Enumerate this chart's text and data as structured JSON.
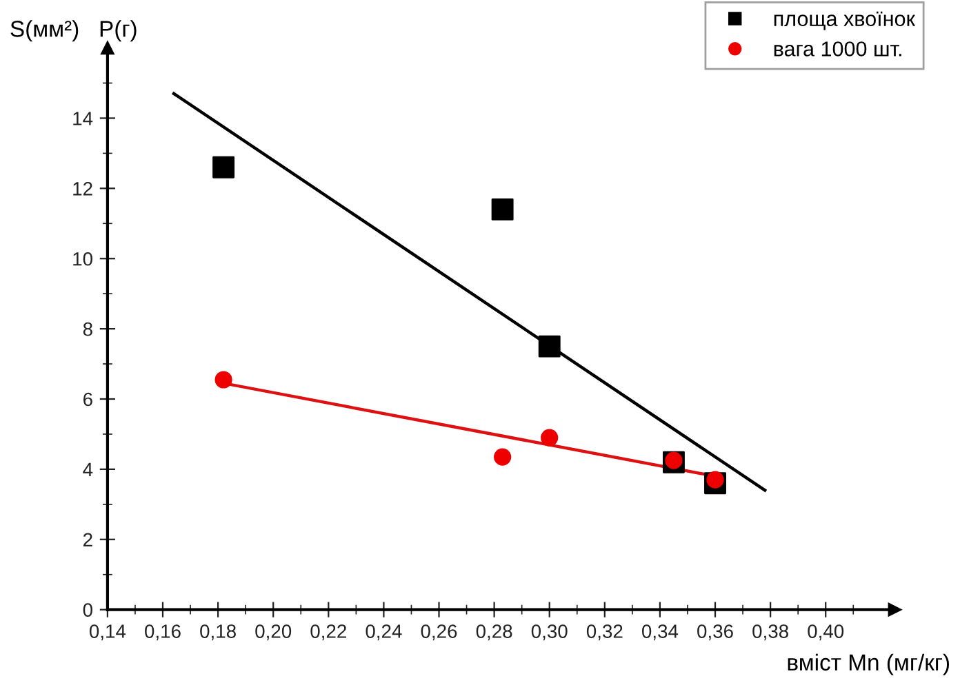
{
  "chart_data": {
    "type": "scatter",
    "xlabel": "вміст Mn (мг/кг)",
    "ylabel": "S(мм²)   P(г)",
    "xlim": [
      0.14,
      0.425
    ],
    "ylim": [
      0,
      16
    ],
    "xticks": [
      {
        "value": 0.14,
        "label": "0,14"
      },
      {
        "value": 0.16,
        "label": "0,16"
      },
      {
        "value": 0.18,
        "label": "0,18"
      },
      {
        "value": 0.2,
        "label": "0,20"
      },
      {
        "value": 0.22,
        "label": "0,22"
      },
      {
        "value": 0.24,
        "label": "0,24"
      },
      {
        "value": 0.26,
        "label": "0,26"
      },
      {
        "value": 0.28,
        "label": "0,28"
      },
      {
        "value": 0.3,
        "label": "0,30"
      },
      {
        "value": 0.32,
        "label": "0,32"
      },
      {
        "value": 0.34,
        "label": "0,34"
      },
      {
        "value": 0.36,
        "label": "0,36"
      },
      {
        "value": 0.38,
        "label": "0,38"
      },
      {
        "value": 0.4,
        "label": "0,40"
      },
      {
        "value": 0.15,
        "label": null
      },
      {
        "value": 0.17,
        "label": null
      },
      {
        "value": 0.19,
        "label": null
      },
      {
        "value": 0.21,
        "label": null
      },
      {
        "value": 0.23,
        "label": null
      },
      {
        "value": 0.25,
        "label": null
      },
      {
        "value": 0.27,
        "label": null
      },
      {
        "value": 0.29,
        "label": null
      },
      {
        "value": 0.31,
        "label": null
      },
      {
        "value": 0.33,
        "label": null
      },
      {
        "value": 0.35,
        "label": null
      },
      {
        "value": 0.37,
        "label": null
      },
      {
        "value": 0.39,
        "label": null
      },
      {
        "value": 0.41,
        "label": null
      }
    ],
    "yticks": [
      0,
      2,
      4,
      6,
      8,
      10,
      12,
      14,
      {
        "value": 1,
        "label": null
      },
      {
        "value": 3,
        "label": null
      },
      {
        "value": 5,
        "label": null
      },
      {
        "value": 7,
        "label": null
      },
      {
        "value": 9,
        "label": null
      },
      {
        "value": 11,
        "label": null
      },
      {
        "value": 13,
        "label": null
      },
      {
        "value": 15,
        "label": null
      }
    ],
    "grid": false,
    "legend": "top right",
    "series": [
      {
        "name": "площа хвоїнок",
        "color": "#000000",
        "marker": "square",
        "x": [
          0.182,
          0.283,
          0.3,
          0.345,
          0.36
        ],
        "values": [
          12.6,
          11.4,
          7.5,
          4.2,
          3.6
        ]
      },
      {
        "name": "вага 1000 шт.",
        "color": "#ee0000",
        "marker": "circle",
        "x": [
          0.182,
          0.283,
          0.3,
          0.345,
          0.36
        ],
        "values": [
          6.55,
          4.35,
          4.9,
          4.25,
          3.7
        ]
      },
      {
        "type": "line",
        "color": "#000000",
        "x": [
          0.164,
          0.378
        ],
        "values": [
          14.7,
          3.4
        ]
      },
      {
        "type": "line",
        "color": "#dd1111",
        "x": [
          0.182,
          0.36
        ],
        "values": [
          6.45,
          3.8
        ]
      }
    ]
  }
}
